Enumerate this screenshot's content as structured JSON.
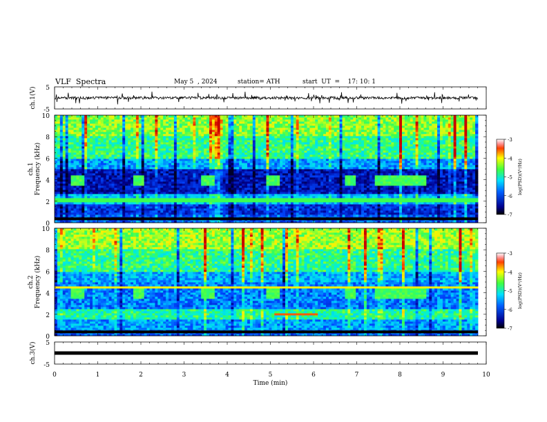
{
  "header": {
    "title": "VLF  Spectra",
    "date": "May 5  , 2024",
    "station": "station= ATH",
    "start_time": "start  UT  =    17: 10: 1"
  },
  "chart_data": [
    {
      "type": "line",
      "name": "ch1-waveform",
      "ylabel": "ch.1(V)",
      "y_ticks": [
        "5",
        "-5"
      ],
      "ylim": [
        -5,
        5
      ],
      "xlim": [
        0,
        10
      ],
      "grid": false,
      "description_values": "noise-like waveform around ~0 V with spikes"
    },
    {
      "type": "heatmap",
      "name": "ch1-spectrogram",
      "ylabel_line1": "ch.1",
      "ylabel_line2": "Frequency (kHz)",
      "y_ticks": [
        "0",
        "2",
        "4",
        "6",
        "8",
        "10"
      ],
      "ylim": [
        0,
        10
      ],
      "xlim": [
        0,
        10
      ],
      "colorbar": {
        "label": "log(PSD)(V²/Hz)",
        "ticks": [
          "-3",
          "-4",
          "-5",
          "-6",
          "-7"
        ],
        "range": [
          -7,
          -3
        ]
      },
      "burst_intervals_min": [
        [
          0.4,
          0.7
        ],
        [
          1.8,
          2.1
        ],
        [
          3.4,
          3.7
        ],
        [
          4.9,
          5.2
        ],
        [
          6.7,
          7.0
        ],
        [
          7.4,
          8.6
        ]
      ],
      "burst_frequency_khz": 4.0
    },
    {
      "type": "heatmap",
      "name": "ch2-spectrogram",
      "ylabel_line1": "ch.2",
      "ylabel_line2": "Frequency (kHz)",
      "y_ticks": [
        "0",
        "2",
        "4",
        "6",
        "8",
        "10"
      ],
      "ylim": [
        0,
        10
      ],
      "xlim": [
        0,
        10
      ],
      "colorbar": {
        "label": "log(PSD)(V²/Hz)",
        "ticks": [
          "-3",
          "-4",
          "-5",
          "-6",
          "-7"
        ],
        "range": [
          -7,
          -3
        ]
      },
      "burst_intervals_min": [
        [
          0.4,
          0.7
        ],
        [
          1.8,
          2.1
        ],
        [
          3.4,
          3.7
        ],
        [
          4.9,
          5.2
        ],
        [
          6.7,
          7.0
        ],
        [
          7.4,
          8.6
        ]
      ],
      "burst_frequency_khz": 4.0
    },
    {
      "type": "line",
      "name": "ch3-waveform",
      "ylabel": "ch.3(V)",
      "y_ticks": [
        "5",
        "-5"
      ],
      "ylim": [
        -5,
        5
      ],
      "xlim": [
        0,
        10
      ],
      "x_ticks": [
        "0",
        "1",
        "2",
        "3",
        "4",
        "5",
        "6",
        "7",
        "8",
        "9",
        "10"
      ],
      "xlabel": "Time  (min)",
      "grid": false,
      "constant_value": 0
    }
  ]
}
